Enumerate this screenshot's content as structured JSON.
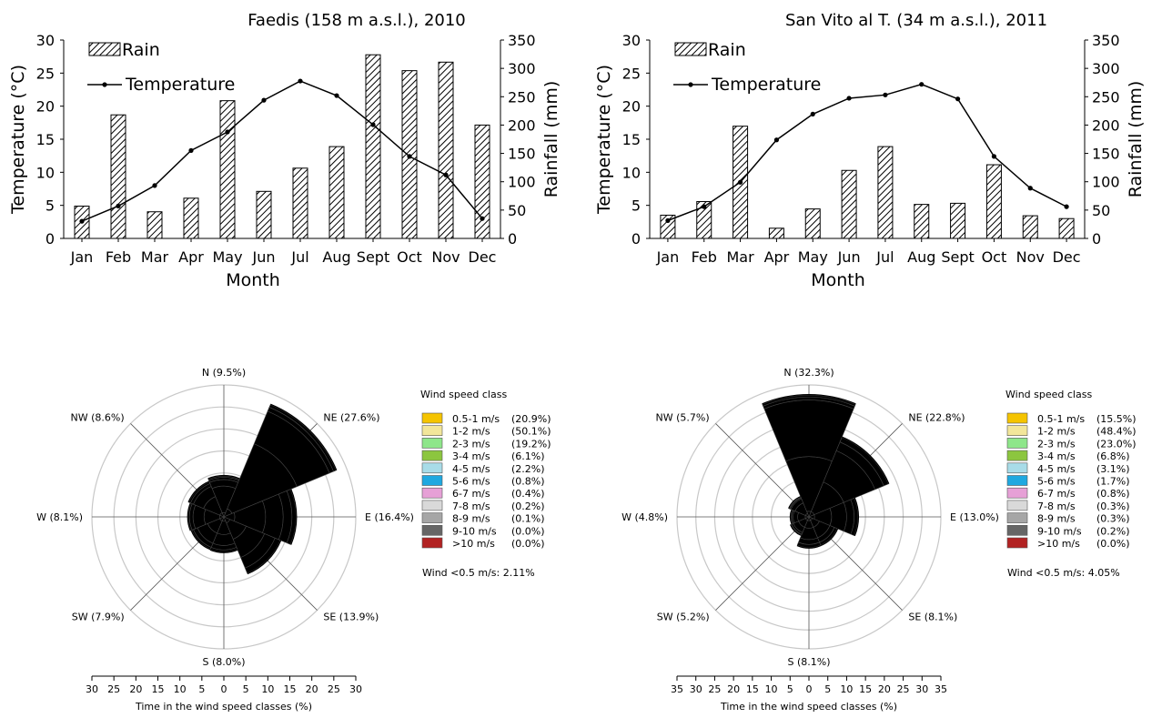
{
  "chart_data": [
    {
      "type": "bar+line",
      "title": "Faedis (158 m a.s.l.), 2010",
      "xlabel": "Month",
      "ylabel": "Temperature (°C)",
      "y2label": "Rainfall (mm)",
      "ylim": [
        0,
        30
      ],
      "y2lim": [
        0,
        350
      ],
      "yticks": [
        "0",
        "5",
        "10",
        "15",
        "20",
        "25",
        "30"
      ],
      "y2ticks": [
        "0",
        "50",
        "100",
        "150",
        "200",
        "250",
        "300",
        "350"
      ],
      "categories": [
        "Jan",
        "Feb",
        "Mar",
        "Apr",
        "May",
        "Jun",
        "Jul",
        "Aug",
        "Sept",
        "Oct",
        "Nov",
        "Dec"
      ],
      "series": [
        {
          "name": "Rain",
          "kind": "bar",
          "axis": "right",
          "values": [
            57,
            218,
            47,
            71,
            243,
            83,
            124,
            162,
            324,
            296,
            311,
            200
          ]
        },
        {
          "name": "Temperature",
          "kind": "line",
          "axis": "left",
          "values": [
            2.6,
            4.9,
            8.0,
            13.3,
            16.1,
            20.9,
            23.8,
            21.6,
            17.2,
            12.4,
            9.6,
            3.0
          ]
        }
      ],
      "legend": "top-left"
    },
    {
      "type": "bar+line",
      "title": "San Vito al T. (34 m a.s.l.), 2011",
      "xlabel": "Month",
      "ylabel": "Temperature (°C)",
      "y2label": "Rainfall (mm)",
      "ylim": [
        0,
        30
      ],
      "y2lim": [
        0,
        350
      ],
      "yticks": [
        "0",
        "5",
        "10",
        "15",
        "20",
        "25",
        "30"
      ],
      "y2ticks": [
        "0",
        "50",
        "100",
        "150",
        "200",
        "250",
        "300",
        "350"
      ],
      "categories": [
        "Jan",
        "Feb",
        "Mar",
        "Apr",
        "May",
        "Jun",
        "Jul",
        "Aug",
        "Sept",
        "Oct",
        "Nov",
        "Dec"
      ],
      "series": [
        {
          "name": "Rain",
          "kind": "bar",
          "axis": "right",
          "values": [
            41,
            65,
            198,
            18,
            52,
            120,
            162,
            60,
            62,
            130,
            40,
            35
          ]
        },
        {
          "name": "Temperature",
          "kind": "line",
          "axis": "left",
          "values": [
            2.7,
            4.8,
            8.5,
            14.9,
            18.8,
            21.2,
            21.7,
            23.3,
            21.1,
            12.4,
            7.6,
            4.8
          ]
        }
      ],
      "legend": "top-left"
    },
    {
      "type": "wind-rose",
      "xlabel": "Time in the wind speed classes (%)",
      "scale_ticks": [
        "30",
        "25",
        "20",
        "15",
        "10",
        "5",
        "0",
        "5",
        "10",
        "15",
        "20",
        "25",
        "30"
      ],
      "max": 30,
      "directions": [
        {
          "label": "N (9.5%)",
          "angle": 0,
          "cumulative": [
            1,
            7,
            8.5,
            9,
            9.3
          ]
        },
        {
          "label": "NE (27.6%)",
          "angle": 45,
          "cumulative": [
            2,
            18,
            26,
            27,
            27.6
          ]
        },
        {
          "label": "E (16.4%)",
          "angle": 90,
          "cumulative": [
            2.5,
            9.5,
            13.5,
            15.5,
            16.4
          ]
        },
        {
          "label": "SE (13.9%)",
          "angle": 135,
          "cumulative": [
            1.5,
            5.5,
            10,
            12.6,
            13.9
          ]
        },
        {
          "label": "S (8.0%)",
          "angle": 180,
          "cumulative": [
            1,
            4,
            6.5,
            7.5,
            8.0
          ]
        },
        {
          "label": "SW (7.9%)",
          "angle": 225,
          "cumulative": [
            1,
            4,
            6.5,
            7.5,
            7.9
          ]
        },
        {
          "label": "W (8.1%)",
          "angle": 270,
          "cumulative": [
            1,
            4.5,
            7,
            7.8,
            8.1
          ]
        },
        {
          "label": "NW (8.6%)",
          "angle": 315,
          "cumulative": [
            1,
            5,
            7.5,
            8.2,
            8.6
          ]
        }
      ],
      "legend_title": "Wind speed class",
      "legend": [
        {
          "label": "0.5-1 m/s",
          "pct": "(20.9%)",
          "color": "#f5c400"
        },
        {
          "label": "1-2 m/s",
          "pct": "(50.1%)",
          "color": "#f2e69a"
        },
        {
          "label": "2-3 m/s",
          "pct": "(19.2%)",
          "color": "#8ee68a"
        },
        {
          "label": "3-4 m/s",
          "pct": "(6.1%)",
          "color": "#8cc63f"
        },
        {
          "label": "4-5 m/s",
          "pct": "(2.2%)",
          "color": "#a8dce8"
        },
        {
          "label": "5-6 m/s",
          "pct": "(0.8%)",
          "color": "#1fa8e0"
        },
        {
          "label": "6-7 m/s",
          "pct": "(0.4%)",
          "color": "#e6a0d6"
        },
        {
          "label": "7-8 m/s",
          "pct": "(0.2%)",
          "color": "#d9d9d9"
        },
        {
          "label": "8-9 m/s",
          "pct": "(0.1%)",
          "color": "#a6a6a6"
        },
        {
          "label": "9-10 m/s",
          "pct": "(0.0%)",
          "color": "#666666"
        },
        {
          "label": ">10 m/s",
          "pct": "(0.0%)",
          "color": "#b22222"
        }
      ],
      "calm_note": "Wind <0.5 m/s: 2.11%"
    },
    {
      "type": "wind-rose",
      "xlabel": "Time in the wind speed classes (%)",
      "scale_ticks": [
        "35",
        "30",
        "25",
        "20",
        "15",
        "10",
        "5",
        "0",
        "5",
        "10",
        "15",
        "20",
        "25",
        "30",
        "35"
      ],
      "max": 35,
      "directions": [
        {
          "label": "N (32.3%)",
          "angle": 0,
          "cumulative": [
            1.5,
            16,
            31,
            31.8,
            32.3
          ]
        },
        {
          "label": "NE (22.8%)",
          "angle": 45,
          "cumulative": [
            1.5,
            10,
            19,
            21.5,
            22.8
          ]
        },
        {
          "label": "E (13.0%)",
          "angle": 90,
          "cumulative": [
            1.5,
            6,
            10,
            12,
            13.0
          ]
        },
        {
          "label": "SE (8.1%)",
          "angle": 135,
          "cumulative": [
            1,
            3,
            6,
            7.3,
            8.1
          ]
        },
        {
          "label": "S (8.1%)",
          "angle": 180,
          "cumulative": [
            1,
            3,
            6,
            7.3,
            8.1
          ]
        },
        {
          "label": "SW (5.2%)",
          "angle": 225,
          "cumulative": [
            1,
            3,
            4.5,
            5,
            5.2
          ]
        },
        {
          "label": "W (4.8%)",
          "angle": 270,
          "cumulative": [
            1,
            3,
            4.2,
            4.6,
            4.8
          ]
        },
        {
          "label": "NW (5.7%)",
          "angle": 315,
          "cumulative": [
            1,
            4,
            5.2,
            5.5,
            5.7
          ]
        }
      ],
      "legend_title": "Wind speed class",
      "legend": [
        {
          "label": "0.5-1 m/s",
          "pct": "(15.5%)",
          "color": "#f5c400"
        },
        {
          "label": "1-2 m/s",
          "pct": "(48.4%)",
          "color": "#f2e69a"
        },
        {
          "label": "2-3 m/s",
          "pct": "(23.0%)",
          "color": "#8ee68a"
        },
        {
          "label": "3-4 m/s",
          "pct": "(6.8%)",
          "color": "#8cc63f"
        },
        {
          "label": "4-5 m/s",
          "pct": "(3.1%)",
          "color": "#a8dce8"
        },
        {
          "label": "5-6 m/s",
          "pct": "(1.7%)",
          "color": "#1fa8e0"
        },
        {
          "label": "6-7 m/s",
          "pct": "(0.8%)",
          "color": "#e6a0d6"
        },
        {
          "label": "7-8 m/s",
          "pct": "(0.3%)",
          "color": "#d9d9d9"
        },
        {
          "label": "8-9 m/s",
          "pct": "(0.3%)",
          "color": "#a6a6a6"
        },
        {
          "label": "9-10 m/s",
          "pct": "(0.2%)",
          "color": "#666666"
        },
        {
          "label": ">10 m/s",
          "pct": "(0.0%)",
          "color": "#b22222"
        }
      ],
      "calm_note": "Wind <0.5 m/s: 4.05%"
    }
  ]
}
